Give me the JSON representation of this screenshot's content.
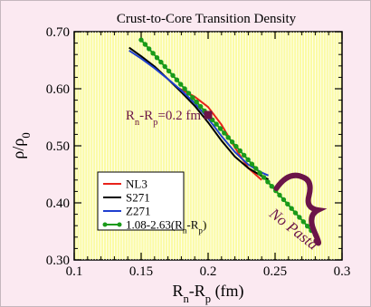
{
  "chart_data": {
    "type": "line",
    "title": "Crust-to-Core Transition Density",
    "xlabel": "R",
    "xlabel_sub1": "n",
    "xlabel_mid": "-R",
    "xlabel_sub2": "p",
    "xlabel_unit": " (fm)",
    "ylabel": "ρ/ρ",
    "ylabel_sub": "0",
    "xlim": [
      0.1,
      0.3
    ],
    "ylim": [
      0.3,
      0.7
    ],
    "xticks": [
      {
        "v": 0.1,
        "label": "0.1"
      },
      {
        "v": 0.15,
        "label": "0.15"
      },
      {
        "v": 0.2,
        "label": "0.2"
      },
      {
        "v": 0.25,
        "label": "0.25"
      },
      {
        "v": 0.3,
        "label": "0.3"
      }
    ],
    "yticks": [
      {
        "v": 0.3,
        "label": "0.30"
      },
      {
        "v": 0.4,
        "label": "0.40"
      },
      {
        "v": 0.5,
        "label": "0.50"
      },
      {
        "v": 0.6,
        "label": "0.60"
      },
      {
        "v": 0.7,
        "label": "0.70"
      }
    ],
    "colors": {
      "plot_bg": "#fbfba6",
      "grid": "#ffffff",
      "nl3": "#e8231b",
      "s271": "#000000",
      "z271": "#1f3fcf",
      "fit": "#1a9a1a",
      "annotation": "#6b1448"
    },
    "series": [
      {
        "name": "NL3",
        "color": "#e8231b",
        "x": [
          0.178,
          0.19,
          0.2,
          0.21,
          0.22,
          0.23,
          0.24
        ],
        "y": [
          0.601,
          0.586,
          0.568,
          0.537,
          0.497,
          0.461,
          0.44
        ]
      },
      {
        "name": "S271",
        "color": "#000000",
        "x": [
          0.141,
          0.15,
          0.16,
          0.17,
          0.18,
          0.19,
          0.2,
          0.21,
          0.22,
          0.23,
          0.24,
          0.245
        ],
        "y": [
          0.672,
          0.657,
          0.639,
          0.617,
          0.594,
          0.57,
          0.541,
          0.509,
          0.481,
          0.461,
          0.447,
          0.441
        ]
      },
      {
        "name": "Z271",
        "color": "#1f3fcf",
        "x": [
          0.141,
          0.15,
          0.16,
          0.17,
          0.18,
          0.19,
          0.2,
          0.21,
          0.22,
          0.23,
          0.24,
          0.245
        ],
        "y": [
          0.667,
          0.653,
          0.636,
          0.617,
          0.597,
          0.575,
          0.548,
          0.517,
          0.489,
          0.467,
          0.453,
          0.448
        ]
      },
      {
        "name": "1.08-2.63(R",
        "name_sub1": "n",
        "name_mid": "-R",
        "name_sub2": "p",
        "name_end": ")",
        "color": "#1a9a1a",
        "formula": {
          "intercept": 1.08,
          "slope": -2.63
        },
        "x_range": [
          0.15,
          0.28
        ],
        "marker_count": 45
      }
    ],
    "annotations": [
      {
        "text": "R",
        "sub1": "n",
        "mid": "-R",
        "sub2": "p",
        "end": "=0.2 fm",
        "x": 0.2,
        "y": 0.554,
        "marker": "square"
      },
      {
        "text": "No Pasta",
        "region_x": [
          0.245,
          0.28
        ],
        "region_y": [
          0.34,
          0.45
        ]
      }
    ],
    "grid": true,
    "legend_position": "bottom-left"
  }
}
